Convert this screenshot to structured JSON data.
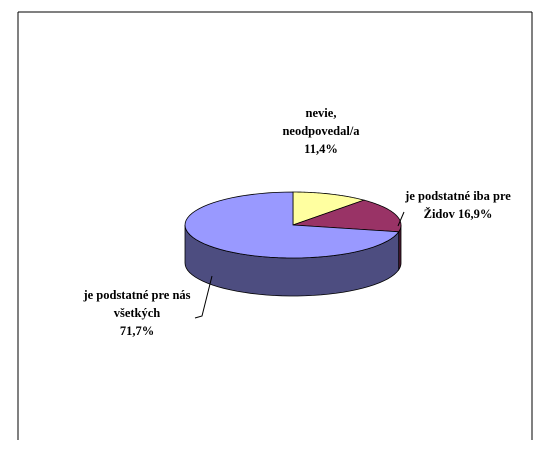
{
  "chart_data": {
    "type": "pie",
    "categories": [
      "nevie, neodpovedal/a",
      "je podstatné iba pre Židov",
      "je podstatné pre nás všetkých"
    ],
    "values": [
      11.4,
      16.9,
      71.7
    ],
    "value_labels": [
      "11,4%",
      "16,9%",
      "71,7%"
    ],
    "colors": [
      "#ffffa0",
      "#993366",
      "#9999ff"
    ]
  }
}
